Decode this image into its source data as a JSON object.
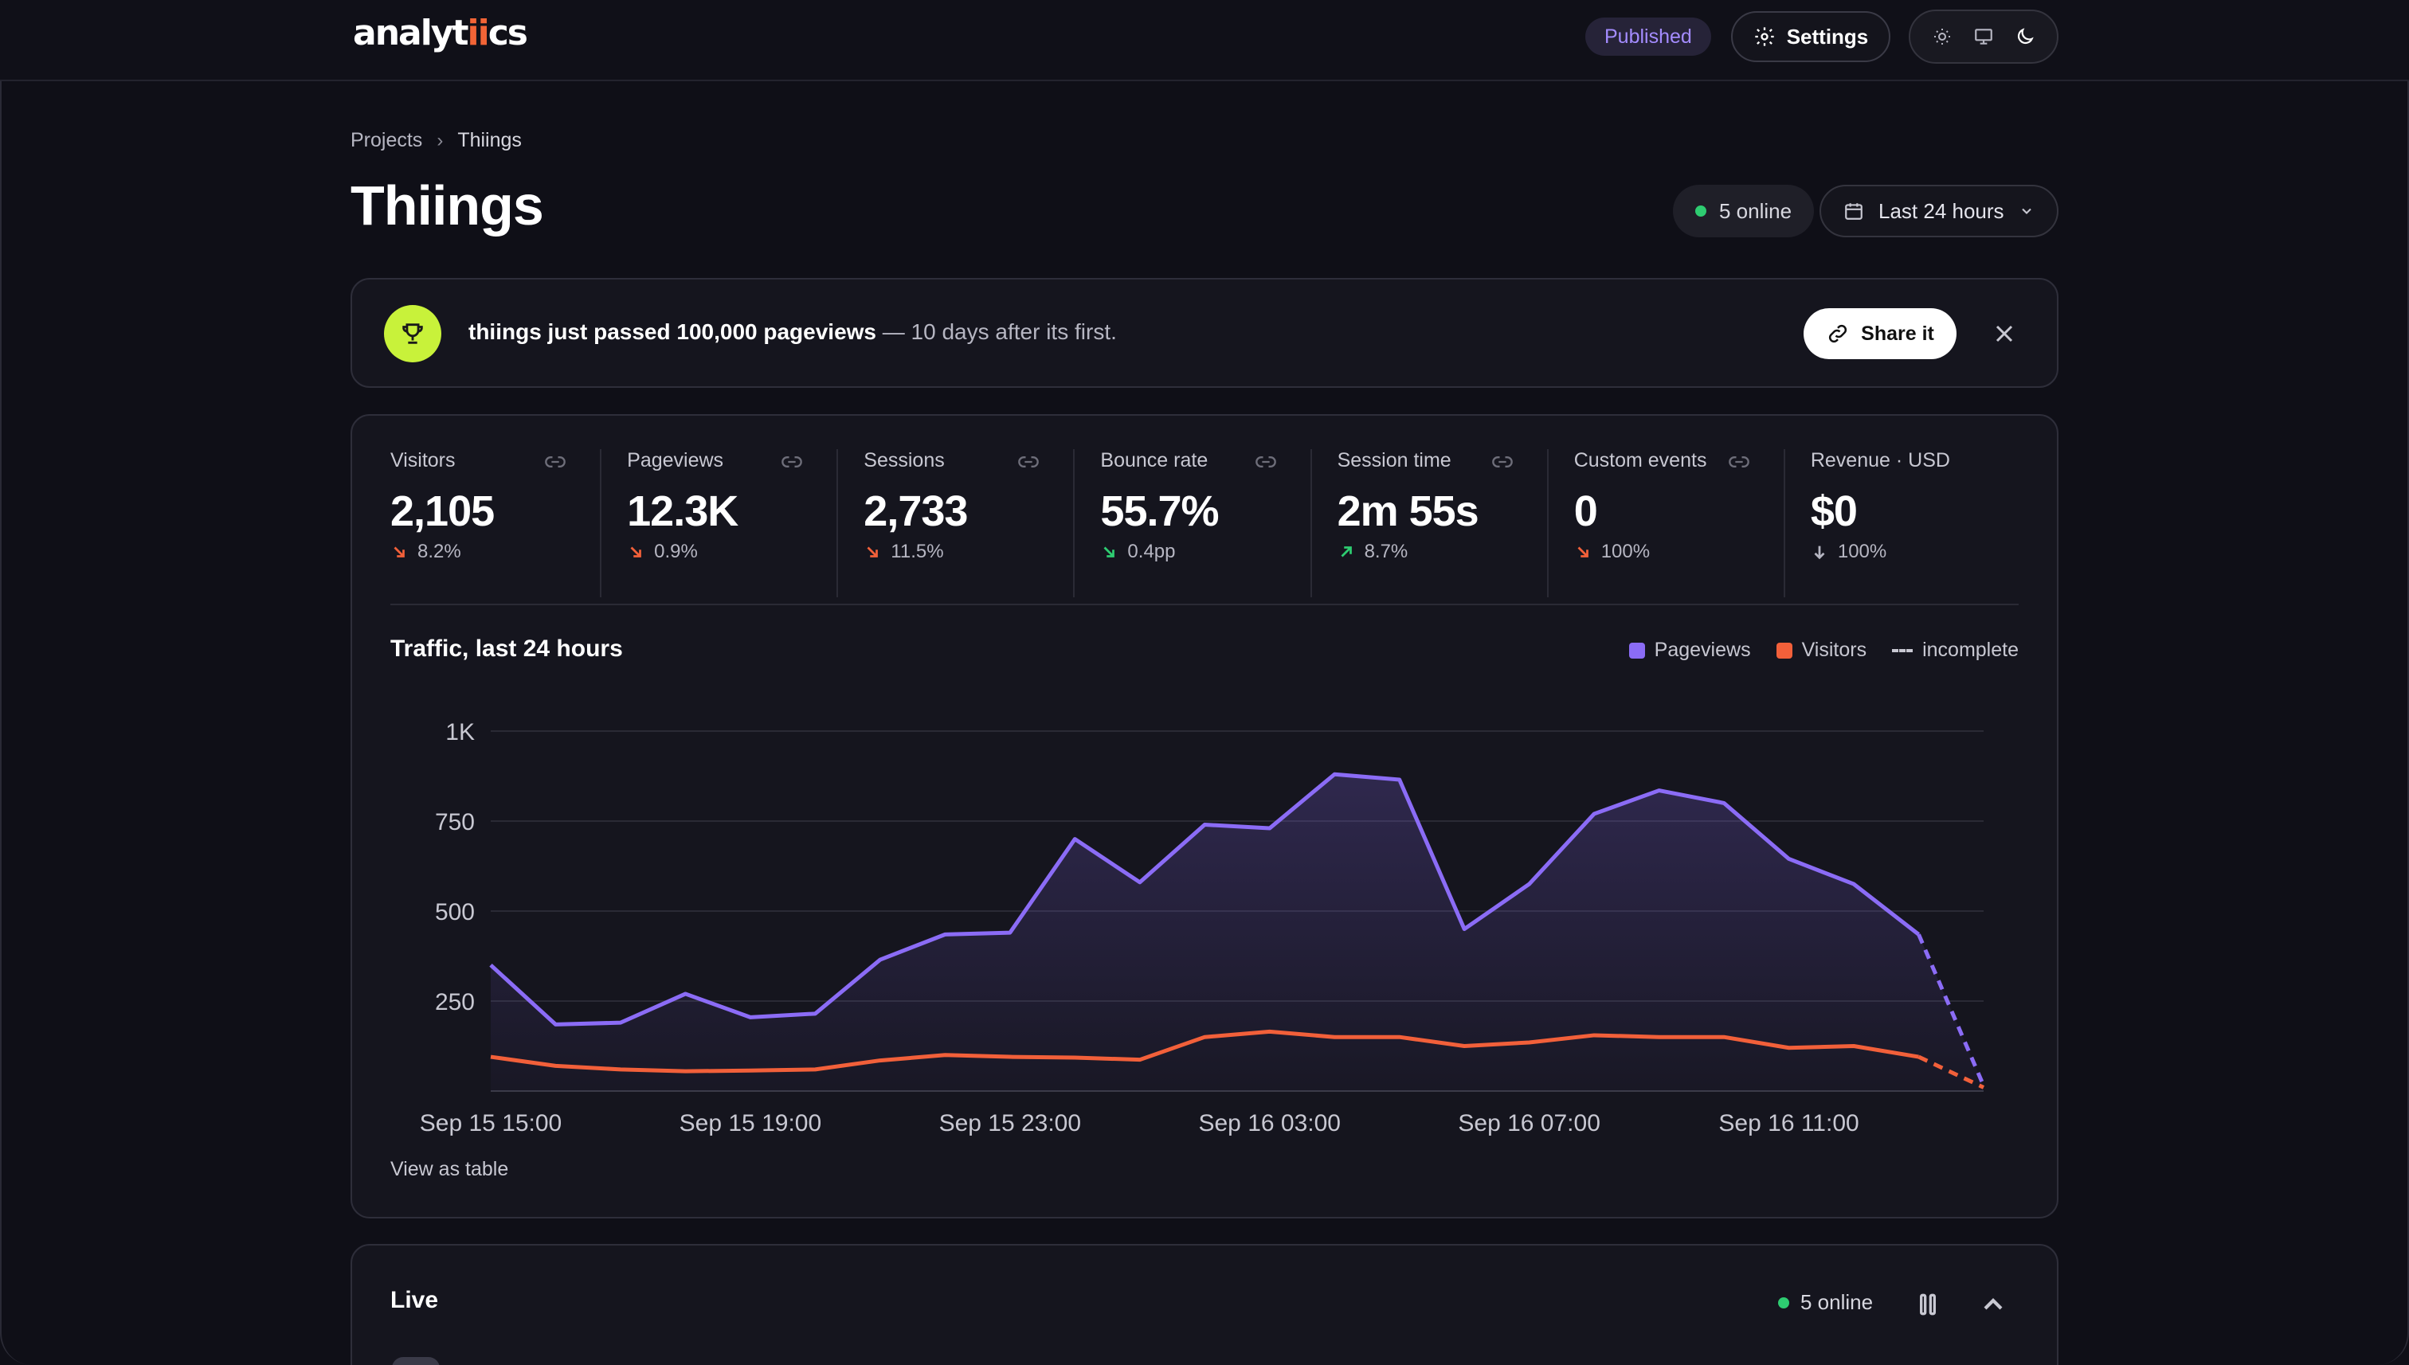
{
  "topbar": {
    "logo": "analytiics",
    "logo_pre": "analyt",
    "logo_ii": "ii",
    "logo_post": "cs",
    "published_label": "Published",
    "settings_label": "Settings",
    "theme_icons": [
      "sun-icon",
      "monitor-icon",
      "moon-icon"
    ]
  },
  "breadcrumb": {
    "root": "Projects",
    "current": "Thiings"
  },
  "page": {
    "title": "Thiings"
  },
  "online": {
    "label": "5 online"
  },
  "range": {
    "label": "Last 24 hours"
  },
  "banner": {
    "bold": "thiings just passed 100,000 pageviews",
    "rest": " — 10 days after its first.",
    "share_label": "Share it"
  },
  "stats": [
    {
      "label": "Visitors",
      "value": "2,105",
      "delta": "8.2%",
      "trend": "down-bad"
    },
    {
      "label": "Pageviews",
      "value": "12.3K",
      "delta": "0.9%",
      "trend": "down-bad"
    },
    {
      "label": "Sessions",
      "value": "2,733",
      "delta": "11.5%",
      "trend": "down-bad"
    },
    {
      "label": "Bounce rate",
      "value": "55.7%",
      "delta": "0.4pp",
      "trend": "down-good"
    },
    {
      "label": "Session time",
      "value": "2m 55s",
      "delta": "8.7%",
      "trend": "up-good"
    },
    {
      "label": "Custom events",
      "value": "0",
      "delta": "100%",
      "trend": "down-bad"
    },
    {
      "label": "Revenue · USD",
      "value": "$0",
      "delta": "100%",
      "trend": "down-neutral"
    }
  ],
  "chart": {
    "title": "Traffic, last 24 hours",
    "legend": {
      "pageviews": "Pageviews",
      "visitors": "Visitors",
      "incomplete": "incomplete"
    },
    "view_table": "View as table"
  },
  "colors": {
    "pageviews": "#8b6cf6",
    "visitors": "#f2603a",
    "bad": "#f2603a",
    "good": "#2ecc71",
    "neutral": "#b6b6c2"
  },
  "chart_data": {
    "type": "line",
    "title": "Traffic, last 24 hours",
    "x_ticks": [
      "Sep 15 15:00",
      "Sep 15 19:00",
      "Sep 15 23:00",
      "Sep 16 03:00",
      "Sep 16 07:00",
      "Sep 16 11:00"
    ],
    "y_ticks": [
      "250",
      "500",
      "750",
      "1K"
    ],
    "ylim": [
      0,
      1000
    ],
    "x": [
      "Sep 15 15:00",
      "Sep 15 16:00",
      "Sep 15 17:00",
      "Sep 15 18:00",
      "Sep 15 19:00",
      "Sep 15 20:00",
      "Sep 15 21:00",
      "Sep 15 22:00",
      "Sep 15 23:00",
      "Sep 16 00:00",
      "Sep 16 01:00",
      "Sep 16 02:00",
      "Sep 16 03:00",
      "Sep 16 04:00",
      "Sep 16 05:00",
      "Sep 16 06:00",
      "Sep 16 07:00",
      "Sep 16 08:00",
      "Sep 16 09:00",
      "Sep 16 10:00",
      "Sep 16 11:00",
      "Sep 16 12:00",
      "Sep 16 13:00",
      "Sep 16 14:00"
    ],
    "series": [
      {
        "name": "Pageviews",
        "values": [
          350,
          185,
          190,
          270,
          205,
          215,
          365,
          435,
          440,
          700,
          580,
          740,
          730,
          880,
          865,
          450,
          575,
          770,
          835,
          800,
          645,
          575,
          435,
          15
        ],
        "incomplete_from": 22
      },
      {
        "name": "Visitors",
        "values": [
          95,
          70,
          60,
          55,
          57,
          60,
          85,
          100,
          95,
          93,
          87,
          150,
          165,
          150,
          150,
          125,
          135,
          155,
          150,
          150,
          120,
          125,
          95,
          10
        ],
        "incomplete_from": 22
      }
    ],
    "grid": true,
    "legend_position": "top-right"
  },
  "live": {
    "title": "Live",
    "online_label": "5 online"
  }
}
